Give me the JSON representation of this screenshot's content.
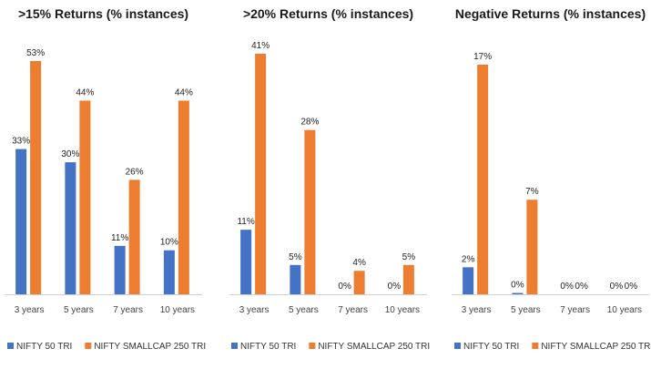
{
  "colors": {
    "nifty50": "#4472C4",
    "smallcap": "#ED7D31",
    "axis": "#d0d0d0"
  },
  "legend": [
    "NIFTY 50 TRI",
    "NIFTY SMALLCAP 250 TRI"
  ],
  "chart_data": [
    {
      "type": "bar",
      "title": ">15% Returns (% instances)",
      "categories": [
        "3 years",
        "5 years",
        "7 years",
        "10 years"
      ],
      "ylim": [
        0,
        53
      ],
      "series": [
        {
          "name": "NIFTY 50 TRI",
          "values": [
            33,
            30,
            11,
            10
          ],
          "labels": [
            "33%",
            "30%",
            "11%",
            "10%"
          ]
        },
        {
          "name": "NIFTY SMALLCAP 250 TRI",
          "values": [
            53,
            44,
            26,
            44
          ],
          "labels": [
            "53%",
            "44%",
            "26%",
            "44%"
          ]
        }
      ],
      "legend_position": "bottom",
      "grid": false
    },
    {
      "type": "bar",
      "title": ">20% Returns (% instances)",
      "categories": [
        "3 years",
        "5 years",
        "7 years",
        "10 years"
      ],
      "ylim": [
        0,
        41
      ],
      "series": [
        {
          "name": "NIFTY 50 TRI",
          "values": [
            11,
            5,
            0,
            0
          ],
          "labels": [
            "11%",
            "5%",
            "0%",
            "0%"
          ]
        },
        {
          "name": "NIFTY SMALLCAP 250 TRI",
          "values": [
            41,
            28,
            4,
            5
          ],
          "labels": [
            "41%",
            "28%",
            "4%",
            "5%"
          ]
        }
      ],
      "legend_position": "bottom",
      "grid": false
    },
    {
      "type": "bar",
      "title": "Negative Returns (% instances)",
      "categories": [
        "3 years",
        "5 years",
        "7 years",
        "10 years"
      ],
      "ylim": [
        0,
        17
      ],
      "series": [
        {
          "name": "NIFTY 50 TRI",
          "values": [
            2,
            0.1,
            0,
            0
          ],
          "labels": [
            "2%",
            "0%",
            "0%",
            "0%"
          ]
        },
        {
          "name": "NIFTY SMALLCAP 250 TRI",
          "values": [
            17,
            7,
            0,
            0
          ],
          "labels": [
            "17%",
            "7%",
            "0%",
            "0%"
          ]
        }
      ],
      "legend_position": "bottom",
      "grid": false
    }
  ]
}
